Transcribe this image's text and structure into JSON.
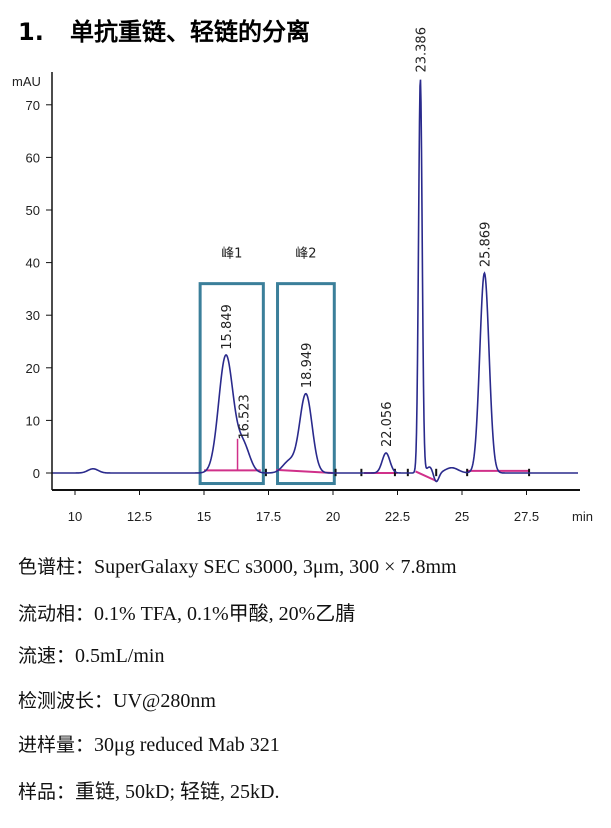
{
  "heading": {
    "number": "1.",
    "text": "单抗重链、轻链的分离"
  },
  "chart_data": {
    "type": "line",
    "ylabel": "mAU",
    "xlabel": "min",
    "xlim": [
      9.1,
      29.5
    ],
    "ylim": [
      -3.2,
      76.6
    ],
    "xticks": [
      10,
      12.5,
      15,
      17.5,
      20,
      22.5,
      25,
      27.5
    ],
    "xtick_labels": [
      "10",
      "12.5",
      "15",
      "17.5",
      "20",
      "22.5",
      "25",
      "27.5"
    ],
    "yticks": [
      0,
      10,
      20,
      30,
      40,
      50,
      60,
      70
    ],
    "ytick_labels": [
      "0",
      "10",
      "20",
      "30",
      "40",
      "50",
      "60",
      "70"
    ],
    "grid": false,
    "line_color": "#2a2a8c",
    "baseline_color": "#d0308a",
    "box_color": "#3b7f9a",
    "peaks": [
      {
        "rt": 10.7,
        "height": 0.8,
        "width": 0.2
      },
      {
        "rt": 15.849,
        "height": 22.3,
        "width": 0.28,
        "label": "15.849"
      },
      {
        "rt": 16.523,
        "height": 5.2,
        "width": 0.25,
        "label": "16.523"
      },
      {
        "rt": 18.3,
        "height": 2.2,
        "width": 0.25
      },
      {
        "rt": 18.949,
        "height": 15.0,
        "width": 0.24,
        "label": "18.949"
      },
      {
        "rt": 22.056,
        "height": 3.8,
        "width": 0.15,
        "label": "22.056"
      },
      {
        "rt": 23.386,
        "height": 75.0,
        "width": 0.07,
        "label": "23.386"
      },
      {
        "rt": 23.75,
        "height": 1.2,
        "width": 0.12
      },
      {
        "rt": 24.0,
        "height": -1.8,
        "width": 0.1
      },
      {
        "rt": 24.6,
        "height": 1.0,
        "width": 0.25
      },
      {
        "rt": 25.869,
        "height": 38.0,
        "width": 0.18,
        "label": "25.869"
      }
    ],
    "regions": [
      {
        "label": "峰1",
        "x": [
          14.85,
          17.3
        ],
        "y": [
          -2,
          36
        ]
      },
      {
        "label": "峰2",
        "x": [
          17.85,
          20.05
        ],
        "y": [
          -2,
          36
        ]
      }
    ]
  },
  "conditions": [
    {
      "key": "色谱柱：",
      "value": "SuperGalaxy SEC s3000, 3μm, 300  × 7.8mm"
    },
    {
      "key": "流动相：",
      "value": "0.1% TFA, 0.1%甲酸, 20%乙腈"
    },
    {
      "key": "流速：",
      "value": "0.5mL/min"
    },
    {
      "key": "检测波长：",
      "value": "UV@280nm"
    },
    {
      "key": "进样量：",
      "value": "30μg reduced Mab 321"
    },
    {
      "key": "样品：",
      "value": "重链, 50kD;  轻链, 25kD."
    }
  ]
}
